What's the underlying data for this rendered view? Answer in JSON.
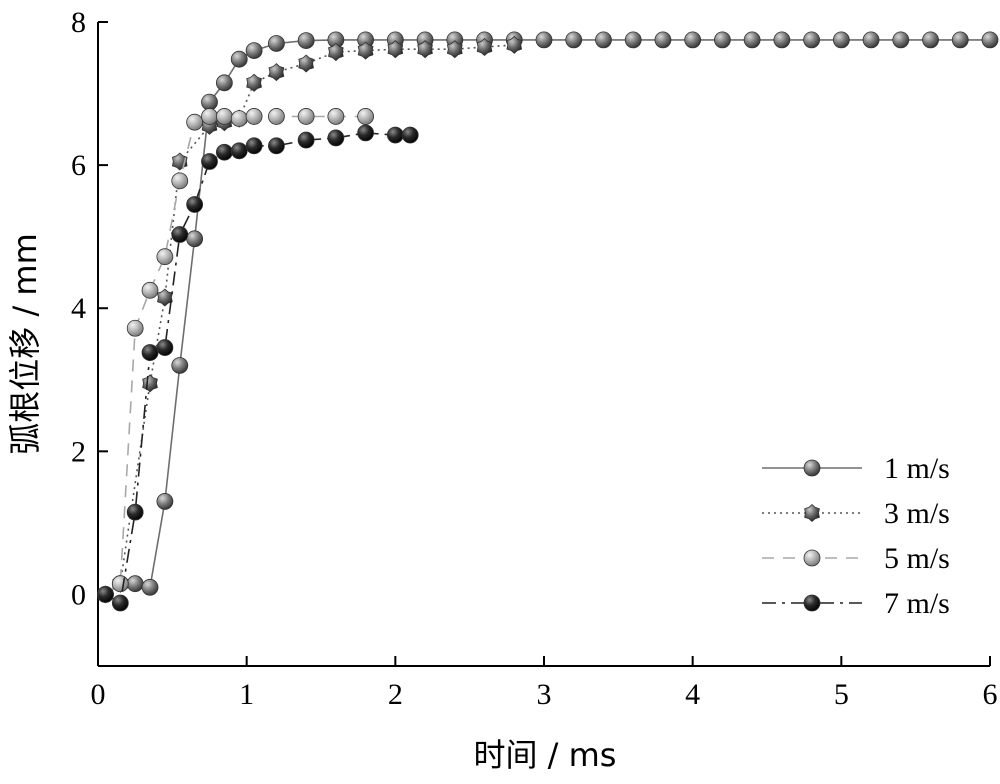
{
  "chart_data": {
    "type": "line",
    "xlabel": "时间 / ms",
    "ylabel": "弧根位移 / mm",
    "xlim": [
      0,
      6
    ],
    "ylim": [
      -1,
      8
    ],
    "xticks": [
      "0",
      "1",
      "2",
      "3",
      "4",
      "5",
      "6"
    ],
    "yticks": [
      "0",
      "2",
      "4",
      "6",
      "8"
    ],
    "grid": false,
    "legend_position": "bottom-right",
    "series": [
      {
        "name": "1 m/s",
        "color": "#6e6e6e",
        "dash": "solid",
        "marker": "sphere",
        "x": [
          0.05,
          0.15,
          0.25,
          0.35,
          0.45,
          0.55,
          0.65,
          0.75,
          0.85,
          0.95,
          1.05,
          1.2,
          1.4,
          1.6,
          1.8,
          2.0,
          2.2,
          2.4,
          2.6,
          2.8,
          3.0,
          3.2,
          3.4,
          3.6,
          3.8,
          4.0,
          4.2,
          4.4,
          4.6,
          4.8,
          5.0,
          5.2,
          5.4,
          5.6,
          5.8,
          6.0
        ],
        "y": [
          0.0,
          0.15,
          0.15,
          0.1,
          1.3,
          3.2,
          4.97,
          6.88,
          7.15,
          7.48,
          7.6,
          7.7,
          7.74,
          7.75,
          7.75,
          7.75,
          7.75,
          7.75,
          7.75,
          7.75,
          7.75,
          7.75,
          7.75,
          7.75,
          7.75,
          7.75,
          7.75,
          7.75,
          7.75,
          7.75,
          7.75,
          7.75,
          7.75,
          7.75,
          7.75,
          7.75
        ]
      },
      {
        "name": "3 m/s",
        "color": "#555555",
        "dash": "dotted",
        "marker": "sphere-star",
        "x": [
          0.05,
          0.15,
          0.35,
          0.45,
          0.55,
          0.75,
          0.85,
          0.95,
          1.05,
          1.2,
          1.4,
          1.6,
          1.8,
          2.0,
          2.2,
          2.4,
          2.6,
          2.8
        ],
        "y": [
          0.0,
          0.15,
          2.95,
          4.15,
          6.05,
          6.55,
          6.6,
          6.65,
          7.15,
          7.3,
          7.42,
          7.58,
          7.6,
          7.62,
          7.62,
          7.62,
          7.65,
          7.68
        ]
      },
      {
        "name": "5 m/s",
        "color": "#a8a8a8",
        "dash": "dashed",
        "marker": "sphere",
        "x": [
          0.05,
          0.15,
          0.25,
          0.35,
          0.45,
          0.55,
          0.65,
          0.75,
          0.85,
          0.95,
          1.05,
          1.2,
          1.4,
          1.6,
          1.8
        ],
        "y": [
          0.0,
          0.15,
          3.72,
          4.25,
          4.72,
          5.78,
          6.6,
          6.68,
          6.68,
          6.65,
          6.68,
          6.68,
          6.68,
          6.68,
          6.68
        ]
      },
      {
        "name": "7 m/s",
        "color": "#222222",
        "dash": "dashdot",
        "marker": "sphere",
        "x": [
          0.05,
          0.15,
          0.25,
          0.35,
          0.45,
          0.55,
          0.65,
          0.75,
          0.85,
          0.95,
          1.05,
          1.2,
          1.4,
          1.6,
          1.8,
          2.0,
          2.1
        ],
        "y": [
          0.0,
          -0.12,
          1.15,
          3.38,
          3.45,
          5.03,
          5.45,
          6.05,
          6.18,
          6.2,
          6.27,
          6.27,
          6.35,
          6.38,
          6.45,
          6.42,
          6.42
        ]
      }
    ]
  }
}
